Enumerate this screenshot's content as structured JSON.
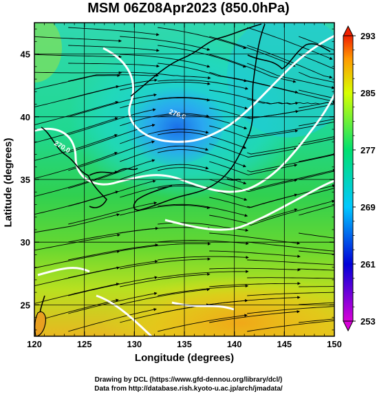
{
  "title": "MSM 06Z08Apr2023 (850.0hPa)",
  "x_axis": {
    "label": "Longitude (degrees)",
    "range": [
      120,
      150
    ],
    "ticks": [
      120,
      125,
      130,
      135,
      140,
      145,
      150
    ],
    "minor_step": 1
  },
  "y_axis": {
    "label": "Latitude  (degrees)",
    "range": [
      22.5,
      47.5
    ],
    "ticks": [
      25,
      30,
      35,
      40,
      45
    ],
    "minor_step": 1
  },
  "colorbar": {
    "min": 253,
    "max": 293,
    "ticks": [
      253,
      261,
      269,
      277,
      285,
      293
    ],
    "colors": [
      "#d800d8",
      "#0000d8",
      "#00c8ff",
      "#00e070",
      "#d8ff00",
      "#ff9800",
      "#f02000"
    ]
  },
  "contour_labels": [
    "270.0",
    "276.0"
  ],
  "credits": {
    "line1": "Drawing by DCL (https://www.gfd-dennou.org/library/dcl/)",
    "line2": "Data from http://database.rish.kyoto-u.ac.jp/arch/jmadata/"
  }
}
